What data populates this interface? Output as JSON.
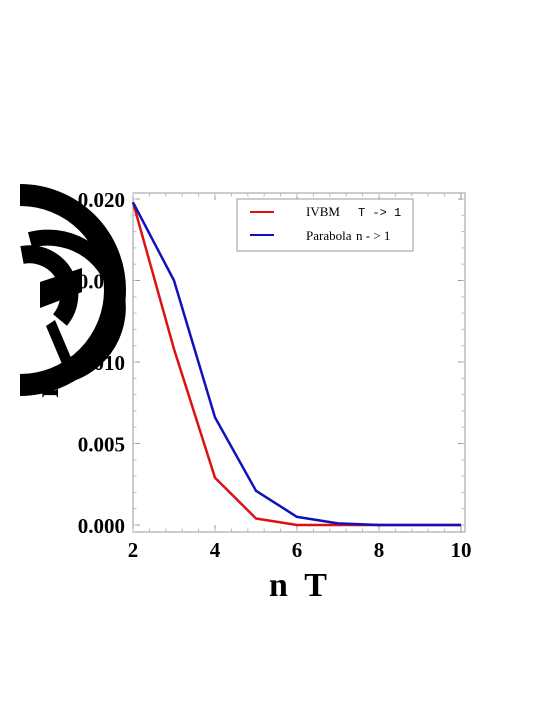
{
  "chart_data": {
    "type": "line",
    "xlabel": "n  T",
    "ylabel": "r²",
    "xlim": [
      2,
      10
    ],
    "ylim": [
      0.0,
      0.02
    ],
    "xticks": [
      "2",
      "4",
      "6",
      "8",
      "10"
    ],
    "xtick_values": [
      2,
      4,
      6,
      8,
      10
    ],
    "yticks": [
      "0.000",
      "0.005",
      "0.010",
      "0.015",
      "0.020"
    ],
    "ytick_values": [
      0.0,
      0.005,
      0.01,
      0.015,
      0.02
    ],
    "grid": false,
    "legend_position": "top-right",
    "series": [
      {
        "name": "IVBM",
        "name_suffix": "T -> 1",
        "color": "#dd1111",
        "x": [
          2,
          3,
          4,
          5,
          6,
          7,
          8,
          9,
          10
        ],
        "values": [
          0.0198,
          0.0108,
          0.0029,
          0.0004,
          0.0,
          0.0,
          0.0,
          0.0,
          0.0
        ]
      },
      {
        "name": "Parabola",
        "name_suffix": "n - > 1",
        "color": "#1111bb",
        "x": [
          2,
          3,
          4,
          5,
          6,
          7,
          8,
          9,
          10
        ],
        "values": [
          0.0198,
          0.015,
          0.0066,
          0.0021,
          0.0005,
          0.0001,
          0.0,
          0.0,
          0.0
        ]
      }
    ]
  }
}
